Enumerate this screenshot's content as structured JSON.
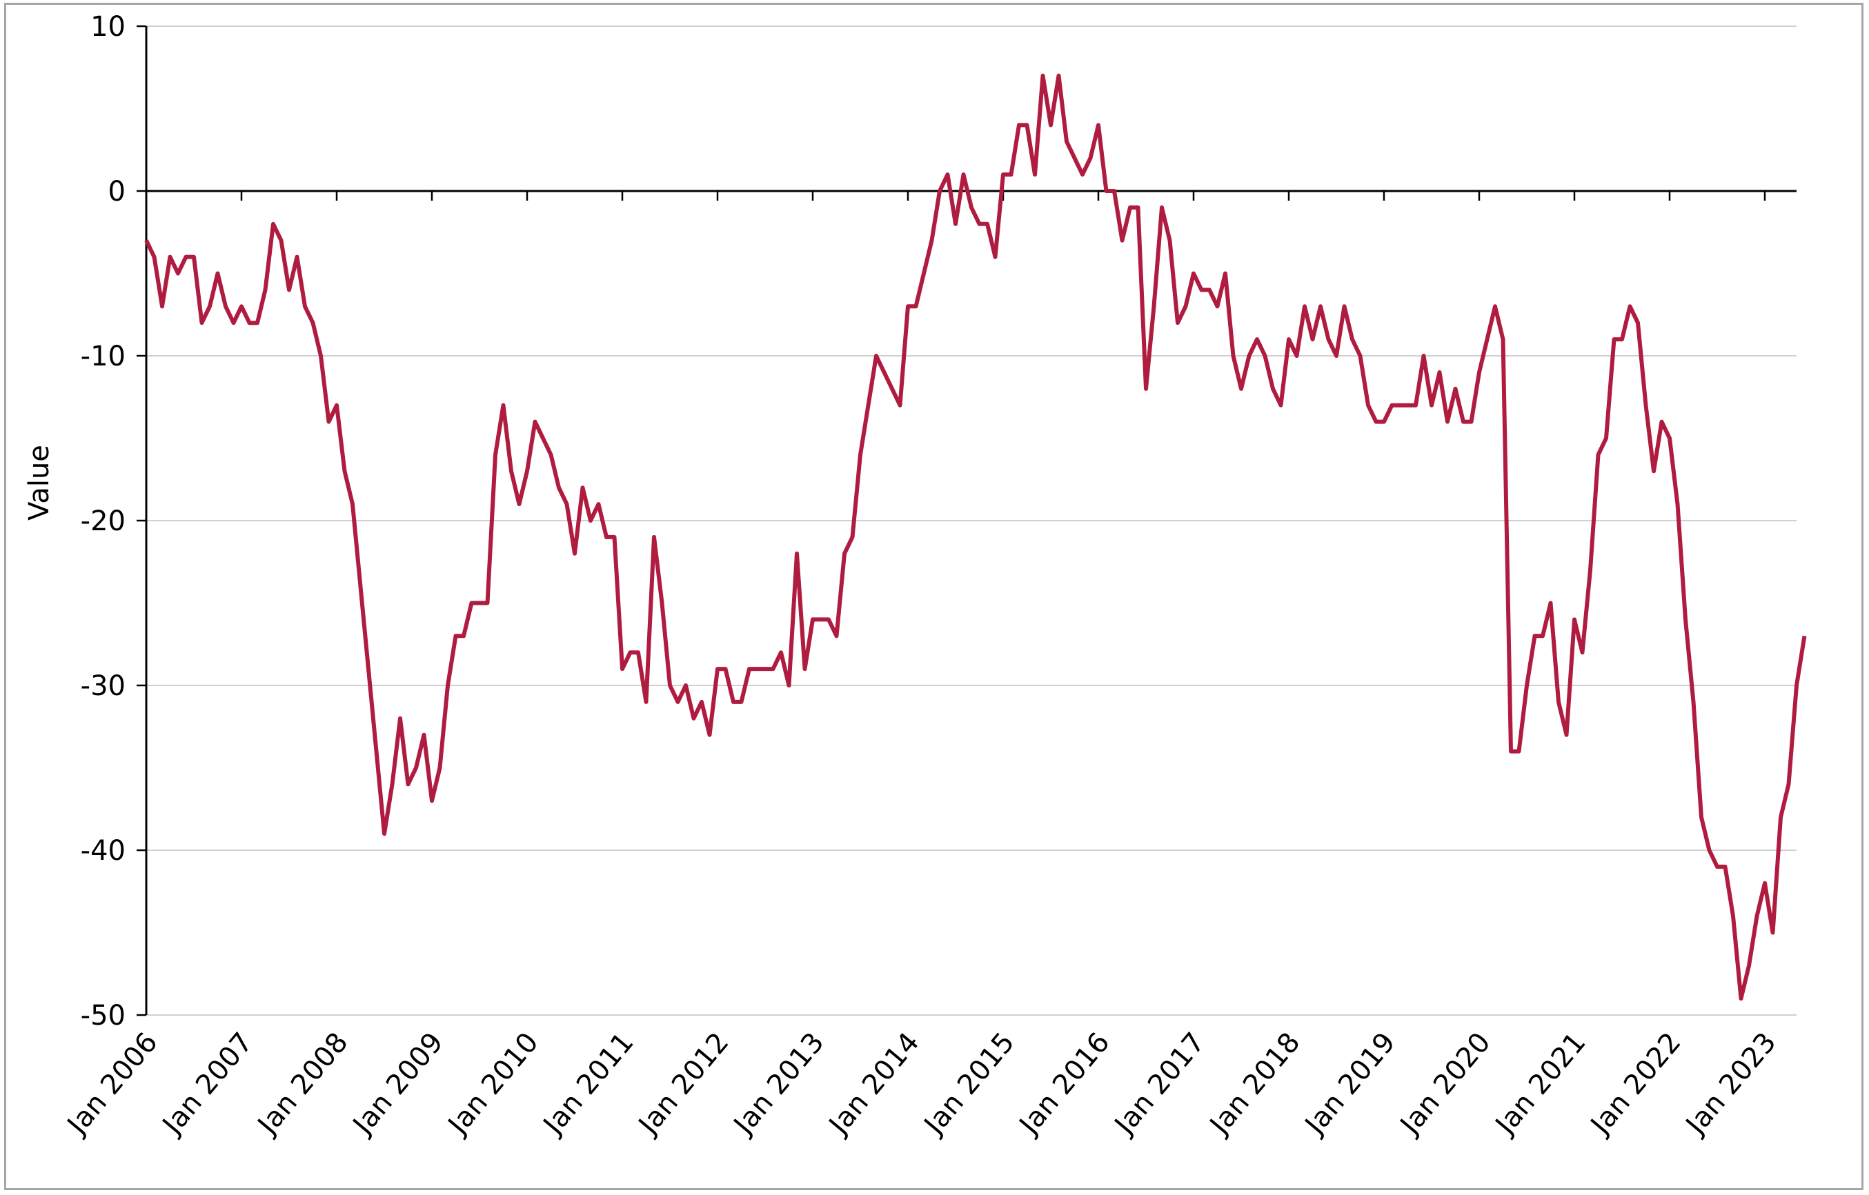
{
  "chart_data": {
    "type": "line",
    "title": "",
    "xlabel": "",
    "ylabel": "Value",
    "ylim": [
      -50,
      10
    ],
    "yticks": [
      10,
      0,
      -10,
      -20,
      -30,
      -40,
      -50
    ],
    "xtick_labels": [
      "Jan 2006",
      "Jan 2007",
      "Jan 2008",
      "Jan 2009",
      "Jan 2010",
      "Jan 2011",
      "Jan 2012",
      "Jan 2013",
      "Jan 2014",
      "Jan 2015",
      "Jan 2016",
      "Jan 2017",
      "Jan 2018",
      "Jan 2019",
      "Jan 2020",
      "Jan 2021",
      "Jan 2022",
      "Jan 2023"
    ],
    "grid": "horizontal",
    "legend": "none",
    "line_color": "#B01C3F",
    "start": "Jan 2006",
    "frequency": "monthly",
    "series": [
      {
        "name": "Value",
        "values": [
          -3,
          -4,
          -7,
          -4,
          -5,
          -4,
          -4,
          -8,
          -7,
          -5,
          -7,
          -8,
          -7,
          -8,
          -8,
          -6,
          -2,
          -3,
          -6,
          -4,
          -7,
          -8,
          -10,
          -14,
          -13,
          -17,
          -19,
          -24,
          -29,
          -34,
          -39,
          -36,
          -32,
          -36,
          -35,
          -33,
          -37,
          -35,
          -30,
          -27,
          -27,
          -25,
          -25,
          -25,
          -16,
          -13,
          -17,
          -19,
          -17,
          -14,
          -15,
          -16,
          -18,
          -19,
          -22,
          -18,
          -20,
          -19,
          -21,
          -21,
          -29,
          -28,
          -28,
          -31,
          -21,
          -25,
          -30,
          -31,
          -30,
          -32,
          -31,
          -33,
          -29,
          -29,
          -31,
          -31,
          -29,
          -29,
          -29,
          -29,
          -28,
          -30,
          -22,
          -29,
          -26,
          -26,
          -26,
          -27,
          -22,
          -21,
          -16,
          -13,
          -10,
          -11,
          -12,
          -13,
          -7,
          -7,
          -5,
          -3,
          0,
          1,
          -2,
          1,
          -1,
          -2,
          -2,
          -4,
          1,
          1,
          4,
          4,
          1,
          7,
          4,
          7,
          3,
          2,
          1,
          2,
          4,
          0,
          0,
          -3,
          -1,
          -1,
          -12,
          -7,
          -1,
          -3,
          -8,
          -7,
          -5,
          -6,
          -6,
          -7,
          -5,
          -10,
          -12,
          -10,
          -9,
          -10,
          -12,
          -13,
          -9,
          -10,
          -7,
          -9,
          -7,
          -9,
          -10,
          -7,
          -9,
          -10,
          -13,
          -14,
          -14,
          -13,
          -13,
          -13,
          -13,
          -10,
          -13,
          -11,
          -14,
          -12,
          -14,
          -14,
          -11,
          -9,
          -7,
          -9,
          -34,
          -34,
          -30,
          -27,
          -27,
          -25,
          -31,
          -33,
          -26,
          -28,
          -23,
          -16,
          -15,
          -9,
          -9,
          -7,
          -8,
          -13,
          -17,
          -14,
          -15,
          -19,
          -26,
          -31,
          -38,
          -40,
          -41,
          -41,
          -44,
          -49,
          -47,
          -44,
          -42,
          -45,
          -38,
          -36,
          -30,
          -27
        ]
      }
    ]
  }
}
